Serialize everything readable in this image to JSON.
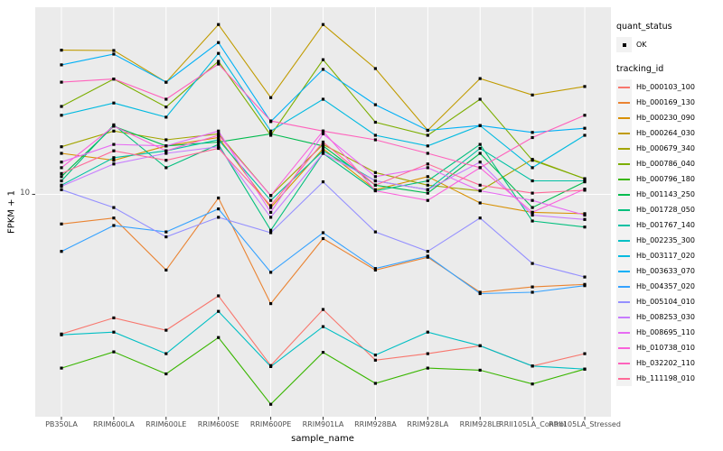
{
  "figure": {
    "background": "#ffffff",
    "panel_background": "#ebebeb",
    "gridline_color": "#ffffff",
    "point_color": "#000000",
    "axis_text_color": "#4d4d4d"
  },
  "axes": {
    "y_title": "FPKM + 1",
    "x_title": "sample_name",
    "y_scale": "log10",
    "y_tick_labels": [
      "10"
    ],
    "y_tick_values": [
      10
    ]
  },
  "legend": {
    "quant_status": {
      "title": "quant_status",
      "items": [
        {
          "label": "OK",
          "shape": "point",
          "color": "#000000"
        }
      ]
    },
    "tracking_id": {
      "title": "tracking_id"
    }
  },
  "chart_data": {
    "type": "line",
    "title": "",
    "xlabel": "sample_name",
    "ylabel": "FPKM + 1",
    "y_scale": "log10",
    "ylim": [
      1.55,
      48
    ],
    "y_breaks": [
      10
    ],
    "grid": "on",
    "legend_position": "right",
    "marker": "black-square",
    "x_categories": [
      "PB350LA",
      "RRIM600LA",
      "RRIM600LE",
      "RRIM600SE",
      "RRIM600PE",
      "RRIM901LA",
      "RRIM928BA",
      "RRIM928LA",
      "RRIM928LE",
      "RRII105LA_Control",
      "RRII105LA_Stressed"
    ],
    "series": [
      {
        "name": "Hb_000103_100",
        "color": "#F8766D",
        "values": [
          3.1,
          3.55,
          3.2,
          4.27,
          2.38,
          3.81,
          2.49,
          2.63,
          2.81,
          2.37,
          2.63
        ]
      },
      {
        "name": "Hb_000169_130",
        "color": "#EA8331",
        "values": [
          7.8,
          8.2,
          5.3,
          9.7,
          4.0,
          6.9,
          5.3,
          5.9,
          4.4,
          4.6,
          4.7
        ]
      },
      {
        "name": "Hb_000230_090",
        "color": "#D89000",
        "values": [
          14.1,
          13.3,
          15.0,
          16.1,
          8.95,
          14.65,
          10.4,
          11.6,
          9.3,
          8.6,
          8.5
        ]
      },
      {
        "name": "Hb_000264_030",
        "color": "#C09B00",
        "values": [
          33.5,
          33.4,
          25.6,
          41.5,
          22.5,
          41.5,
          28.7,
          17.1,
          26.4,
          23.0,
          24.7
        ]
      },
      {
        "name": "Hb_000679_340",
        "color": "#A3A500",
        "values": [
          14.9,
          17.0,
          15.8,
          16.6,
          9.9,
          15.2,
          12.0,
          10.8,
          10.3,
          13.4,
          11.4
        ]
      },
      {
        "name": "Hb_000786_040",
        "color": "#7CAE00",
        "values": [
          20.9,
          26.3,
          20.8,
          30.5,
          16.4,
          30.9,
          18.3,
          16.4,
          22.2,
          13.3,
          11.4
        ]
      },
      {
        "name": "Hb_000796_180",
        "color": "#39B600",
        "values": [
          2.33,
          2.67,
          2.22,
          3.01,
          1.72,
          2.66,
          2.05,
          2.33,
          2.29,
          2.04,
          2.31
        ]
      },
      {
        "name": "Hb_001143_250",
        "color": "#00BB4E",
        "values": [
          11.6,
          17.7,
          15.0,
          15.5,
          16.6,
          15.0,
          10.8,
          10.1,
          14.1,
          8.95,
          11.1
        ]
      },
      {
        "name": "Hb_001728_050",
        "color": "#00BF7D",
        "values": [
          11.2,
          17.9,
          12.5,
          15.2,
          7.4,
          14.1,
          10.3,
          11.2,
          15.2,
          8.0,
          7.6
        ]
      },
      {
        "name": "Hb_001767_140",
        "color": "#00C1A3",
        "values": [
          10.8,
          13.6,
          14.4,
          15.8,
          9.5,
          14.4,
          11.2,
          10.4,
          14.7,
          11.2,
          11.2
        ]
      },
      {
        "name": "Hb_002235_300",
        "color": "#00BFC4",
        "values": [
          3.08,
          3.15,
          2.63,
          3.75,
          2.36,
          3.3,
          2.6,
          3.15,
          2.81,
          2.37,
          2.31
        ]
      },
      {
        "name": "Hb_003117_020",
        "color": "#00BAE0",
        "values": [
          19.4,
          21.5,
          19.1,
          32.6,
          17.0,
          22.2,
          16.4,
          15.0,
          17.8,
          12.5,
          16.4
        ]
      },
      {
        "name": "Hb_003633_070",
        "color": "#00B0F6",
        "values": [
          29.6,
          32.4,
          25.6,
          35.7,
          18.4,
          28.5,
          21.2,
          17.1,
          17.8,
          16.8,
          17.4
        ]
      },
      {
        "name": "Hb_004357_020",
        "color": "#35A2FF",
        "values": [
          6.2,
          7.7,
          7.3,
          8.85,
          5.2,
          7.25,
          5.37,
          5.96,
          4.35,
          4.4,
          4.65
        ]
      },
      {
        "name": "Hb_005104_010",
        "color": "#9590FF",
        "values": [
          10.4,
          8.95,
          7.0,
          8.25,
          7.25,
          11.1,
          7.3,
          6.2,
          8.2,
          5.6,
          5.0
        ]
      },
      {
        "name": "Hb_008253_030",
        "color": "#C77CFF",
        "values": [
          10.7,
          12.9,
          14.1,
          14.9,
          8.25,
          14.1,
          11.2,
          10.4,
          13.1,
          8.4,
          8.1
        ]
      },
      {
        "name": "Hb_008695_110",
        "color": "#E76BF3",
        "values": [
          13.1,
          15.2,
          15.0,
          17.0,
          8.6,
          16.6,
          11.6,
          12.5,
          10.3,
          9.5,
          8.4
        ]
      },
      {
        "name": "Hb_010738_010",
        "color": "#FA62DB",
        "values": [
          12.5,
          17.7,
          14.4,
          16.4,
          9.9,
          17.0,
          10.3,
          9.5,
          12.5,
          8.6,
          10.45
        ]
      },
      {
        "name": "Hb_032202_110",
        "color": "#FF62BC",
        "values": [
          25.6,
          26.3,
          22.2,
          29.8,
          18.5,
          17.0,
          15.8,
          14.1,
          12.5,
          16.1,
          19.4
        ]
      },
      {
        "name": "Hb_111198_010",
        "color": "#FF6A98",
        "values": [
          11.9,
          14.4,
          13.3,
          14.7,
          9.1,
          15.5,
          10.8,
          12.9,
          10.8,
          10.1,
          10.35
        ]
      }
    ]
  }
}
